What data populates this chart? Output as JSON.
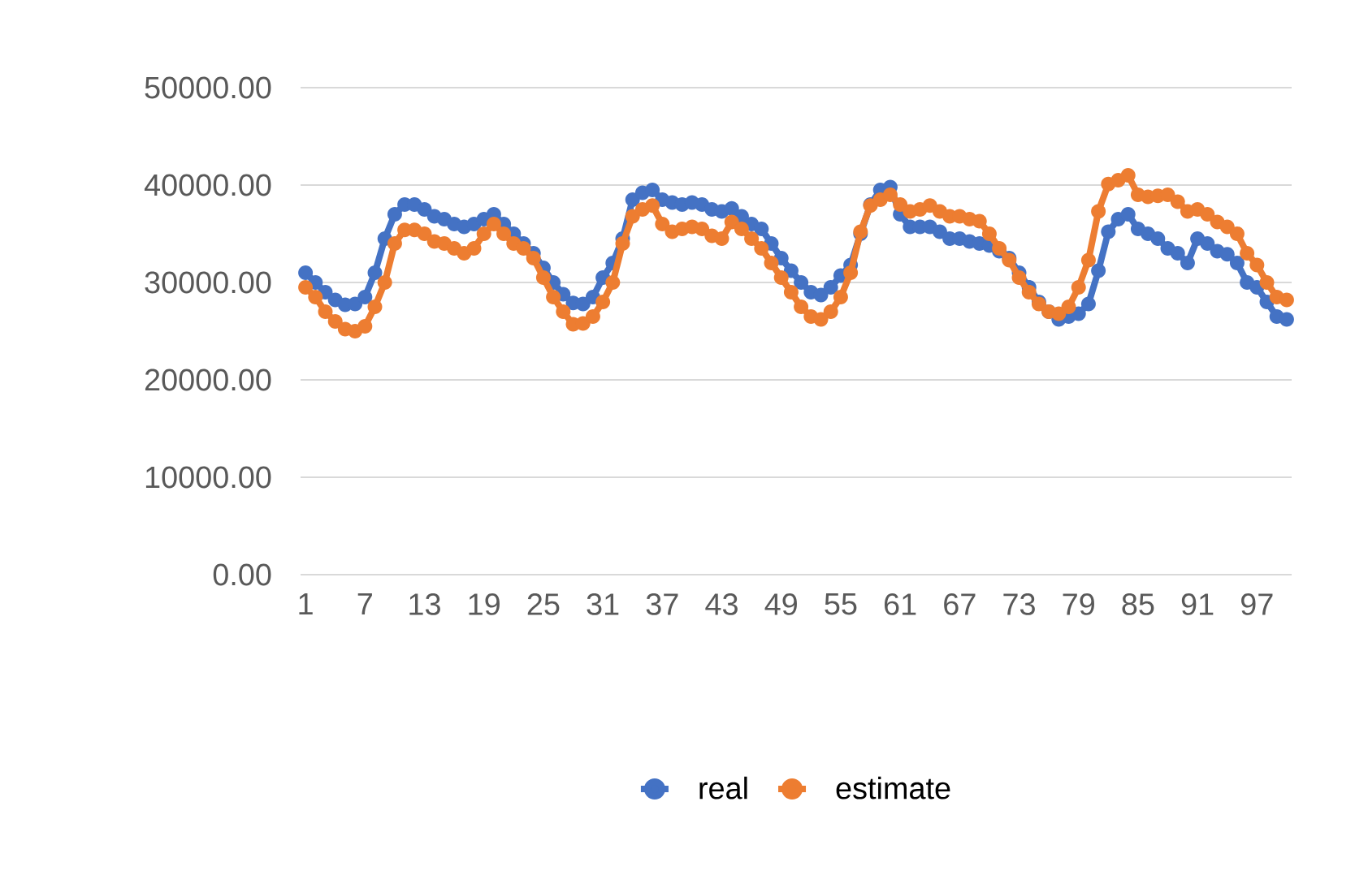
{
  "chart_data": {
    "type": "line",
    "categories": [
      "1",
      null,
      null,
      null,
      null,
      null,
      "7",
      null,
      null,
      null,
      null,
      null,
      "13",
      null,
      null,
      null,
      null,
      null,
      "19",
      null,
      null,
      null,
      null,
      null,
      "25",
      null,
      null,
      null,
      null,
      null,
      "31",
      null,
      null,
      null,
      null,
      null,
      "37",
      null,
      null,
      null,
      null,
      null,
      "43",
      null,
      null,
      null,
      null,
      null,
      "49",
      null,
      null,
      null,
      null,
      null,
      "55",
      null,
      null,
      null,
      null,
      null,
      "61",
      null,
      null,
      null,
      null,
      null,
      "67",
      null,
      null,
      null,
      null,
      null,
      "73",
      null,
      null,
      null,
      null,
      null,
      "79",
      null,
      null,
      null,
      null,
      null,
      "85",
      null,
      null,
      null,
      null,
      null,
      "91",
      null,
      null,
      null,
      null,
      null,
      "97",
      null,
      null,
      null
    ],
    "series": [
      {
        "name": "real",
        "color": "#4472c4",
        "values": [
          31000,
          30000,
          29000,
          28200,
          27700,
          27800,
          28500,
          31000,
          34500,
          37000,
          38000,
          38000,
          37500,
          36800,
          36500,
          36000,
          35700,
          36000,
          36500,
          37000,
          36000,
          35000,
          34000,
          33000,
          31500,
          30000,
          28800,
          27900,
          27800,
          28500,
          30500,
          32000,
          34500,
          38500,
          39200,
          39500,
          38500,
          38200,
          38000,
          38200,
          38000,
          37500,
          37300,
          37600,
          36800,
          36000,
          35500,
          34000,
          32500,
          31200,
          30000,
          29000,
          28700,
          29500,
          30700,
          31800,
          35000,
          38000,
          39500,
          39800,
          37000,
          35700,
          35700,
          35700,
          35200,
          34500,
          34500,
          34200,
          34000,
          33800,
          33200,
          32500,
          31000,
          29500,
          28000,
          27000,
          26200,
          26500,
          26800,
          27800,
          31200,
          35200,
          36500,
          37000,
          35500,
          35000,
          34500,
          33500,
          33000,
          32000,
          34500,
          34000,
          33200,
          32900,
          32000,
          30000,
          29500,
          28000,
          26500,
          26200
        ]
      },
      {
        "name": "estimate",
        "color": "#ed7d31",
        "values": [
          29500,
          28500,
          27000,
          26000,
          25200,
          25000,
          25500,
          27500,
          30000,
          34000,
          35400,
          35400,
          35000,
          34200,
          34000,
          33500,
          33000,
          33500,
          35000,
          36000,
          35000,
          34000,
          33500,
          32500,
          30500,
          28500,
          27000,
          25700,
          25800,
          26500,
          28000,
          30000,
          34000,
          36800,
          37500,
          37900,
          36000,
          35200,
          35500,
          35700,
          35500,
          34800,
          34500,
          36200,
          35500,
          34500,
          33500,
          32000,
          30500,
          29000,
          27500,
          26500,
          26200,
          27000,
          28500,
          31000,
          35200,
          37900,
          38500,
          39000,
          38000,
          37300,
          37500,
          37900,
          37300,
          36800,
          36800,
          36500,
          36300,
          35000,
          33500,
          32300,
          30500,
          29000,
          27800,
          27000,
          26800,
          27500,
          29500,
          32300,
          37300,
          40100,
          40500,
          41000,
          39000,
          38800,
          38900,
          39000,
          38300,
          37300,
          37500,
          37000,
          36200,
          35700,
          35000,
          33000,
          31800,
          30000,
          28500,
          28200
        ]
      }
    ],
    "ylim": [
      0,
      50000
    ],
    "yticks": [
      {
        "value": 0,
        "label": "0.00"
      },
      {
        "value": 10000,
        "label": "10000.00"
      },
      {
        "value": 20000,
        "label": "20000.00"
      },
      {
        "value": 30000,
        "label": "30000.00"
      },
      {
        "value": 40000,
        "label": "40000.00"
      },
      {
        "value": 50000,
        "label": "50000.00"
      }
    ],
    "grid": "y",
    "legend": "bottom",
    "marker": "circle"
  }
}
